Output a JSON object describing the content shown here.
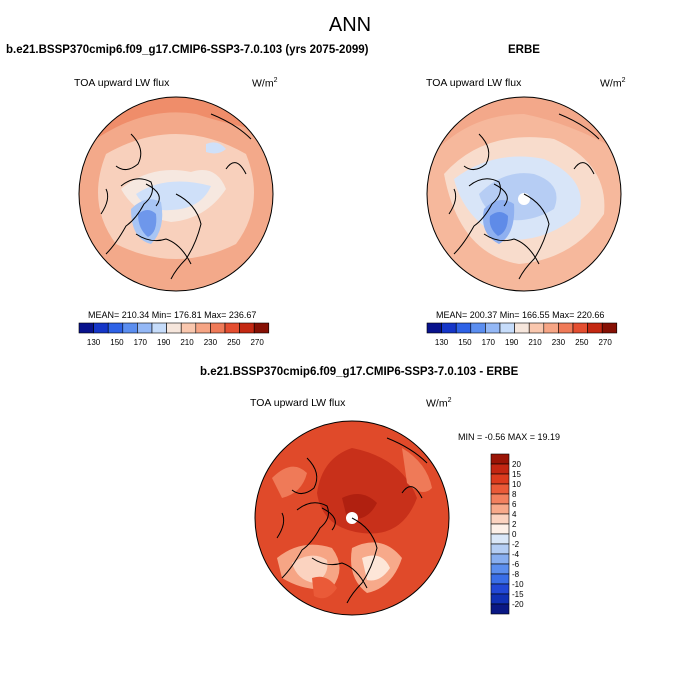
{
  "title": "ANN",
  "panels": {
    "model": {
      "title": "b.e21.BSSP370cmip6.f09_g17.CMIP6-SSP3-7.0.103 (yrs 2075-2099)",
      "variable": "TOA upward LW flux",
      "units": "W/m",
      "units_exp": "2",
      "stats": "MEAN= 210.34  Min= 176.81  Max= 236.67"
    },
    "obs": {
      "title": "ERBE",
      "variable": "TOA upward LW flux",
      "units": "W/m",
      "units_exp": "2",
      "stats": "MEAN= 200.37  Min= 166.55  Max= 220.66"
    },
    "diff": {
      "title": "b.e21.BSSP370cmip6.f09_g17.CMIP6-SSP3-7.0.103 - ERBE",
      "variable": "TOA upward LW flux",
      "units": "W/m",
      "units_exp": "2",
      "stats": "MIN =  -0.56 MAX =  19.19"
    }
  },
  "colorbar_abs": {
    "colors": [
      "#08128c",
      "#1536c8",
      "#2e62e6",
      "#5b8ef0",
      "#94b8f6",
      "#c6dcfa",
      "#f6e6dc",
      "#f9c7ae",
      "#f6a585",
      "#ef7a58",
      "#e44e30",
      "#c42812",
      "#861004"
    ],
    "labels": [
      "130",
      "150",
      "170",
      "190",
      "210",
      "230",
      "250",
      "270"
    ]
  },
  "colorbar_diff": {
    "colors": [
      "#9a1406",
      "#c32612",
      "#dc3b1e",
      "#ea5a38",
      "#f2805e",
      "#f7a98a",
      "#fbd3c0",
      "#fdf0e8",
      "#dae7f8",
      "#b4cdf4",
      "#88aef0",
      "#5c8eee",
      "#3a6ee8",
      "#2248d6",
      "#1030b4",
      "#0a1884"
    ],
    "labels": [
      "20",
      "15",
      "10",
      "8",
      "6",
      "4",
      "2",
      "0",
      "-2",
      "-4",
      "-6",
      "-8",
      "-10",
      "-15",
      "-20"
    ]
  }
}
